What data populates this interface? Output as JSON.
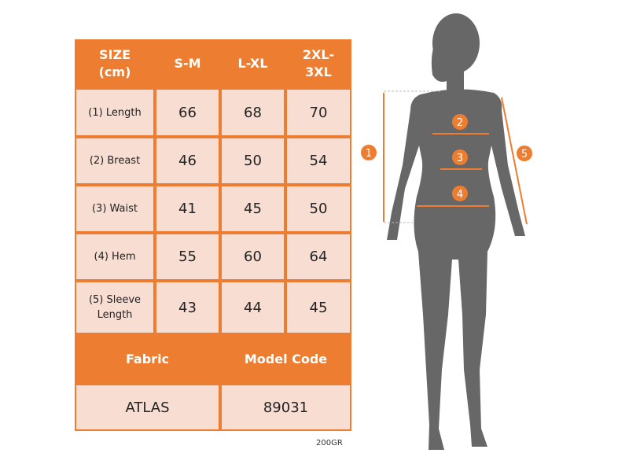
{
  "table": {
    "header": [
      "SIZE\n(cm)",
      "S-M",
      "L-XL",
      "2XL-\n3XL"
    ],
    "rows": [
      {
        "label": "(1) Length",
        "values": [
          "66",
          "68",
          "70"
        ]
      },
      {
        "label": "(2) Breast",
        "values": [
          "46",
          "50",
          "54"
        ]
      },
      {
        "label": "(3) Waist",
        "values": [
          "41",
          "45",
          "50"
        ]
      },
      {
        "label": "(4) Hem",
        "values": [
          "55",
          "60",
          "64"
        ]
      },
      {
        "label": "(5) Sleeve\nLength",
        "values": [
          "43",
          "44",
          "45"
        ]
      }
    ],
    "info_header": [
      "Fabric",
      "Model Code"
    ],
    "info_values": [
      "ATLAS",
      "89031"
    ]
  },
  "footnote": "200GR",
  "figure": {
    "markers": [
      "1",
      "2",
      "3",
      "4",
      "5"
    ],
    "accent": "#ED7D31",
    "silhouette_color": "#666666"
  }
}
